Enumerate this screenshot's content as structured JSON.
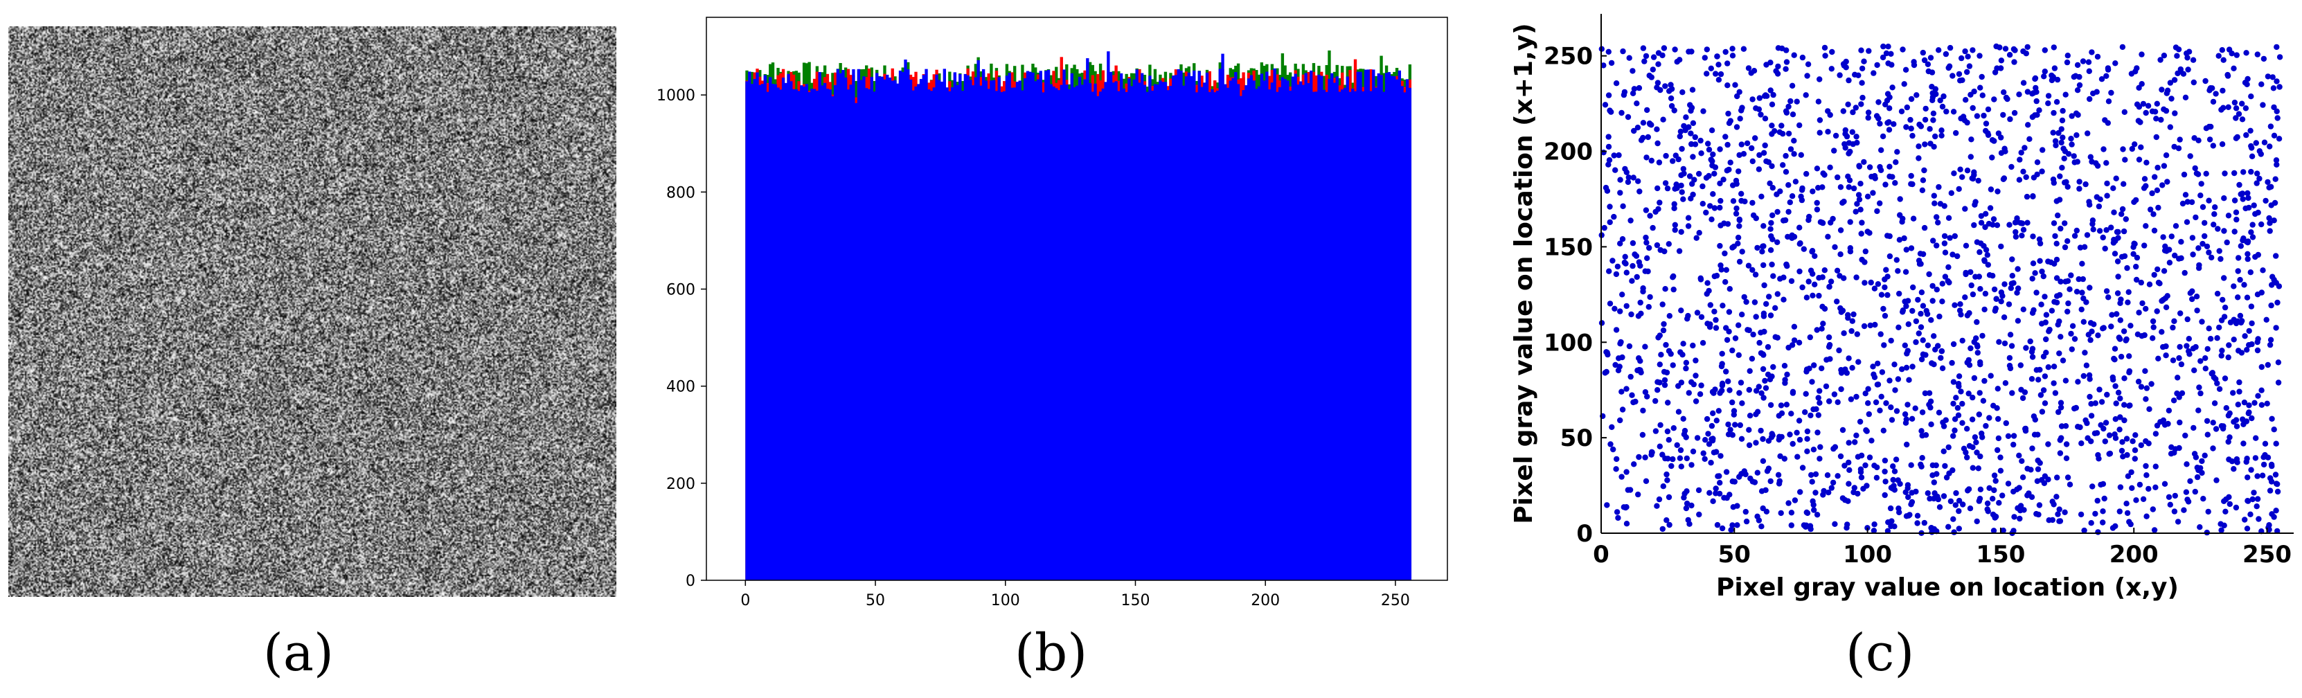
{
  "labels": {
    "a": "(a)",
    "b": "(b)",
    "c": "(c)"
  },
  "panel_a": {
    "description": "encrypted noise image",
    "colors": {
      "dark": "#111111",
      "light": "#e6e6e6"
    }
  },
  "chart_data": [
    {
      "type": "bar",
      "title": "",
      "xlabel": "",
      "ylabel": "",
      "xlim": [
        -15,
        270
      ],
      "ylim": [
        0,
        1160
      ],
      "x_ticks": [
        0,
        50,
        100,
        150,
        200,
        250
      ],
      "y_ticks": [
        0,
        200,
        400,
        600,
        800,
        1000
      ],
      "bins": 256,
      "series": [
        {
          "color": "#008000",
          "mean": 1040,
          "spread": 28
        },
        {
          "color": "#ff0000",
          "mean": 1025,
          "spread": 30
        },
        {
          "color": "#0000ff",
          "mean": 1030,
          "spread": 25
        }
      ],
      "grid": false
    },
    {
      "type": "scatter",
      "title": "",
      "xlabel": "Pixel gray value on location (x,y)",
      "ylabel": "Pixel gray value on location (x+1,y)",
      "xlim": [
        0,
        260
      ],
      "ylim": [
        0,
        272
      ],
      "x_ticks": [
        0,
        50,
        100,
        150,
        200,
        250
      ],
      "y_ticks": [
        0,
        50,
        100,
        150,
        200,
        250
      ],
      "point_color": "#0000cc",
      "point_count": 2500,
      "value_range": [
        0,
        255
      ],
      "grid": false
    }
  ]
}
